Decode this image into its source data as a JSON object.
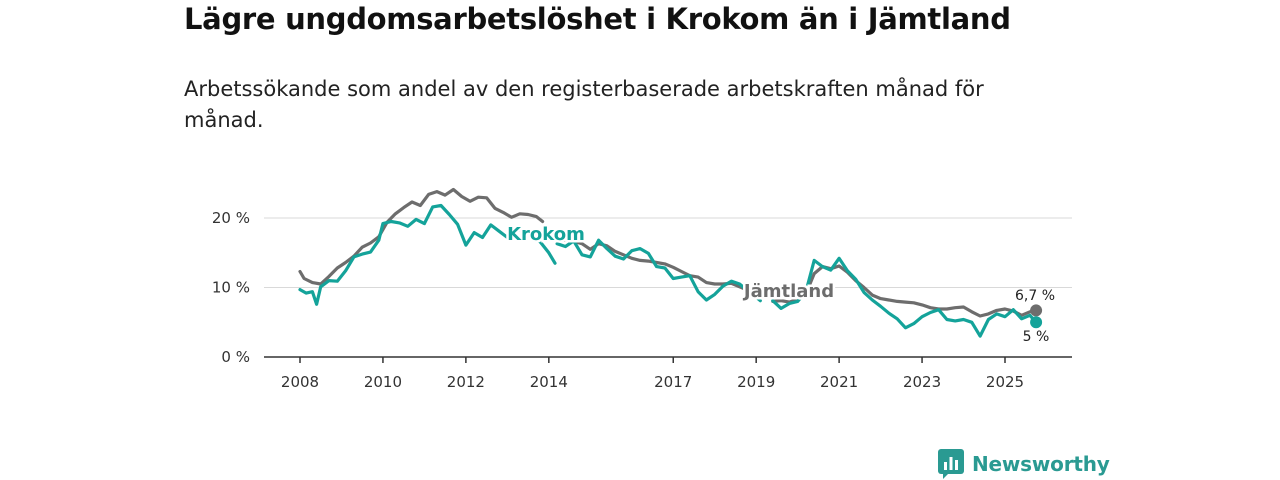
{
  "title": "Lägre ungdomsarbetslöshet i Krokom än i Jämtland",
  "subtitle": "Arbetssökande som andel av den registerbaserade arbetskraften månad för månad.",
  "brand": {
    "name": "Newsworthy",
    "icon": "newsworthy-logo-icon"
  },
  "colors": {
    "krokom": "#14a39a",
    "jamtland": "#6d6d6d"
  },
  "chart_data": {
    "type": "line",
    "title": "Lägre ungdomsarbetslöshet i Krokom än i Jämtland",
    "xlabel": "",
    "ylabel": "",
    "xlim": [
      2007.9,
      2025.9
    ],
    "ylim": [
      0,
      20
    ],
    "y_ticks": [
      {
        "value": 0,
        "label": "0 %"
      },
      {
        "value": 10,
        "label": "10 %"
      },
      {
        "value": 20,
        "label": "20 %"
      }
    ],
    "x_ticks": [
      {
        "value": 2008,
        "label": "2008"
      },
      {
        "value": 2010,
        "label": "2010"
      },
      {
        "value": 2012,
        "label": "2012"
      },
      {
        "value": 2014,
        "label": "2014"
      },
      {
        "value": 2017,
        "label": "2017"
      },
      {
        "value": 2019,
        "label": "2019"
      },
      {
        "value": 2021,
        "label": "2021"
      },
      {
        "value": 2023,
        "label": "2023"
      },
      {
        "value": 2025,
        "label": "2025"
      }
    ],
    "grid": true,
    "series": [
      {
        "name": "Jämtland",
        "label": "Jämtland",
        "end_label": "6,7 %",
        "segments": [
          [
            [
              2008.0,
              12.3
            ],
            [
              2008.1,
              11.3
            ],
            [
              2008.3,
              10.7
            ],
            [
              2008.5,
              10.5
            ],
            [
              2008.7,
              11.6
            ],
            [
              2008.9,
              12.8
            ],
            [
              2009.1,
              13.6
            ],
            [
              2009.3,
              14.5
            ],
            [
              2009.5,
              15.8
            ],
            [
              2009.7,
              16.4
            ],
            [
              2009.9,
              17.3
            ],
            [
              2010.1,
              19.4
            ],
            [
              2010.3,
              20.6
            ],
            [
              2010.5,
              21.5
            ],
            [
              2010.7,
              22.3
            ],
            [
              2010.9,
              21.8
            ],
            [
              2011.1,
              23.4
            ],
            [
              2011.3,
              23.8
            ],
            [
              2011.5,
              23.3
            ],
            [
              2011.7,
              24.1
            ],
            [
              2011.9,
              23.1
            ],
            [
              2012.1,
              22.4
            ],
            [
              2012.3,
              23.0
            ],
            [
              2012.5,
              22.9
            ],
            [
              2012.7,
              21.4
            ],
            [
              2012.9,
              20.8
            ],
            [
              2013.1,
              20.1
            ],
            [
              2013.3,
              20.6
            ],
            [
              2013.5,
              20.5
            ],
            [
              2013.7,
              20.2
            ],
            [
              2013.85,
              19.5
            ]
          ],
          [
            [
              2014.2,
              16.8
            ],
            [
              2014.5,
              16.8
            ],
            [
              2014.8,
              16.3
            ],
            [
              2015.0,
              15.5
            ],
            [
              2015.2,
              16.3
            ],
            [
              2015.4,
              16.0
            ],
            [
              2015.6,
              15.2
            ],
            [
              2015.8,
              14.7
            ],
            [
              2016.0,
              14.2
            ],
            [
              2016.2,
              13.9
            ],
            [
              2016.4,
              13.8
            ],
            [
              2016.6,
              13.6
            ],
            [
              2016.8,
              13.4
            ],
            [
              2017.0,
              12.9
            ],
            [
              2017.2,
              12.3
            ],
            [
              2017.4,
              11.7
            ],
            [
              2017.6,
              11.5
            ],
            [
              2017.8,
              10.7
            ],
            [
              2018.0,
              10.5
            ],
            [
              2018.2,
              10.5
            ],
            [
              2018.4,
              10.6
            ],
            [
              2018.6,
              10.1
            ],
            [
              2018.8,
              9.6
            ],
            [
              2019.0,
              9.1
            ]
          ],
          [
            [
              2019.4,
              8.0
            ],
            [
              2019.6,
              8.1
            ],
            [
              2019.8,
              7.9
            ],
            [
              2020.0,
              8.3
            ],
            [
              2020.2,
              9.1
            ],
            [
              2020.4,
              12.0
            ],
            [
              2020.6,
              13.0
            ],
            [
              2020.8,
              12.7
            ],
            [
              2021.0,
              13.1
            ],
            [
              2021.2,
              12.2
            ],
            [
              2021.4,
              11.0
            ],
            [
              2021.6,
              10.0
            ],
            [
              2021.8,
              8.9
            ],
            [
              2022.0,
              8.4
            ],
            [
              2022.2,
              8.2
            ],
            [
              2022.4,
              8.0
            ],
            [
              2022.6,
              7.9
            ],
            [
              2022.8,
              7.8
            ],
            [
              2023.0,
              7.5
            ],
            [
              2023.2,
              7.1
            ],
            [
              2023.4,
              6.9
            ],
            [
              2023.6,
              6.9
            ],
            [
              2023.8,
              7.1
            ],
            [
              2024.0,
              7.2
            ],
            [
              2024.2,
              6.5
            ],
            [
              2024.4,
              5.9
            ],
            [
              2024.6,
              6.2
            ],
            [
              2024.8,
              6.7
            ],
            [
              2025.0,
              6.9
            ],
            [
              2025.2,
              6.6
            ],
            [
              2025.4,
              6.0
            ],
            [
              2025.6,
              6.5
            ],
            [
              2025.75,
              6.7
            ]
          ]
        ]
      },
      {
        "name": "Krokom",
        "label": "Krokom",
        "end_label": "5 %",
        "segments": [
          [
            [
              2008.0,
              9.7
            ],
            [
              2008.15,
              9.2
            ],
            [
              2008.3,
              9.4
            ],
            [
              2008.4,
              7.6
            ],
            [
              2008.5,
              10.1
            ],
            [
              2008.7,
              11.0
            ],
            [
              2008.9,
              10.9
            ],
            [
              2009.1,
              12.4
            ],
            [
              2009.3,
              14.4
            ],
            [
              2009.5,
              14.8
            ],
            [
              2009.7,
              15.1
            ],
            [
              2009.9,
              16.8
            ],
            [
              2010.0,
              19.2
            ],
            [
              2010.2,
              19.5
            ],
            [
              2010.4,
              19.3
            ],
            [
              2010.6,
              18.8
            ],
            [
              2010.8,
              19.8
            ],
            [
              2011.0,
              19.2
            ],
            [
              2011.2,
              21.6
            ],
            [
              2011.4,
              21.8
            ],
            [
              2011.6,
              20.5
            ],
            [
              2011.8,
              19.1
            ],
            [
              2012.0,
              16.1
            ],
            [
              2012.2,
              17.9
            ],
            [
              2012.4,
              17.2
            ],
            [
              2012.6,
              19.0
            ],
            [
              2012.8,
              18.1
            ],
            [
              2013.0,
              17.2
            ],
            [
              2013.2,
              18.3
            ],
            [
              2013.4,
              18.2
            ],
            [
              2013.6,
              17.6
            ],
            [
              2013.8,
              16.5
            ],
            [
              2014.0,
              15.0
            ],
            [
              2014.15,
              13.5
            ]
          ],
          [
            [
              2014.2,
              16.3
            ],
            [
              2014.4,
              15.9
            ],
            [
              2014.6,
              16.7
            ],
            [
              2014.8,
              14.7
            ],
            [
              2015.0,
              14.4
            ],
            [
              2015.2,
              16.8
            ],
            [
              2015.4,
              15.6
            ],
            [
              2015.6,
              14.5
            ],
            [
              2015.8,
              14.1
            ],
            [
              2016.0,
              15.3
            ],
            [
              2016.2,
              15.6
            ],
            [
              2016.4,
              14.9
            ],
            [
              2016.6,
              13.0
            ],
            [
              2016.8,
              12.8
            ],
            [
              2017.0,
              11.3
            ],
            [
              2017.2,
              11.5
            ],
            [
              2017.4,
              11.7
            ],
            [
              2017.6,
              9.4
            ],
            [
              2017.8,
              8.2
            ],
            [
              2018.0,
              9.0
            ],
            [
              2018.2,
              10.2
            ],
            [
              2018.4,
              10.9
            ],
            [
              2018.6,
              10.5
            ],
            [
              2018.8,
              9.5
            ],
            [
              2019.0,
              8.6
            ],
            [
              2019.1,
              8.1
            ]
          ],
          [
            [
              2019.4,
              8.1
            ],
            [
              2019.6,
              7.0
            ],
            [
              2019.8,
              7.7
            ],
            [
              2020.0,
              8.0
            ],
            [
              2020.2,
              9.4
            ],
            [
              2020.4,
              13.9
            ],
            [
              2020.6,
              13.0
            ],
            [
              2020.8,
              12.5
            ],
            [
              2021.0,
              14.2
            ],
            [
              2021.2,
              12.4
            ],
            [
              2021.4,
              11.2
            ],
            [
              2021.6,
              9.3
            ],
            [
              2021.8,
              8.2
            ],
            [
              2022.0,
              7.3
            ],
            [
              2022.2,
              6.3
            ],
            [
              2022.4,
              5.5
            ],
            [
              2022.6,
              4.2
            ],
            [
              2022.8,
              4.8
            ],
            [
              2023.0,
              5.8
            ],
            [
              2023.2,
              6.4
            ],
            [
              2023.4,
              6.8
            ],
            [
              2023.6,
              5.4
            ],
            [
              2023.8,
              5.2
            ],
            [
              2024.0,
              5.4
            ],
            [
              2024.2,
              5.0
            ],
            [
              2024.4,
              3.0
            ],
            [
              2024.6,
              5.4
            ],
            [
              2024.8,
              6.2
            ],
            [
              2025.0,
              5.8
            ],
            [
              2025.2,
              6.8
            ],
            [
              2025.4,
              5.5
            ],
            [
              2025.6,
              6.0
            ],
            [
              2025.75,
              5.0
            ]
          ]
        ]
      }
    ]
  }
}
